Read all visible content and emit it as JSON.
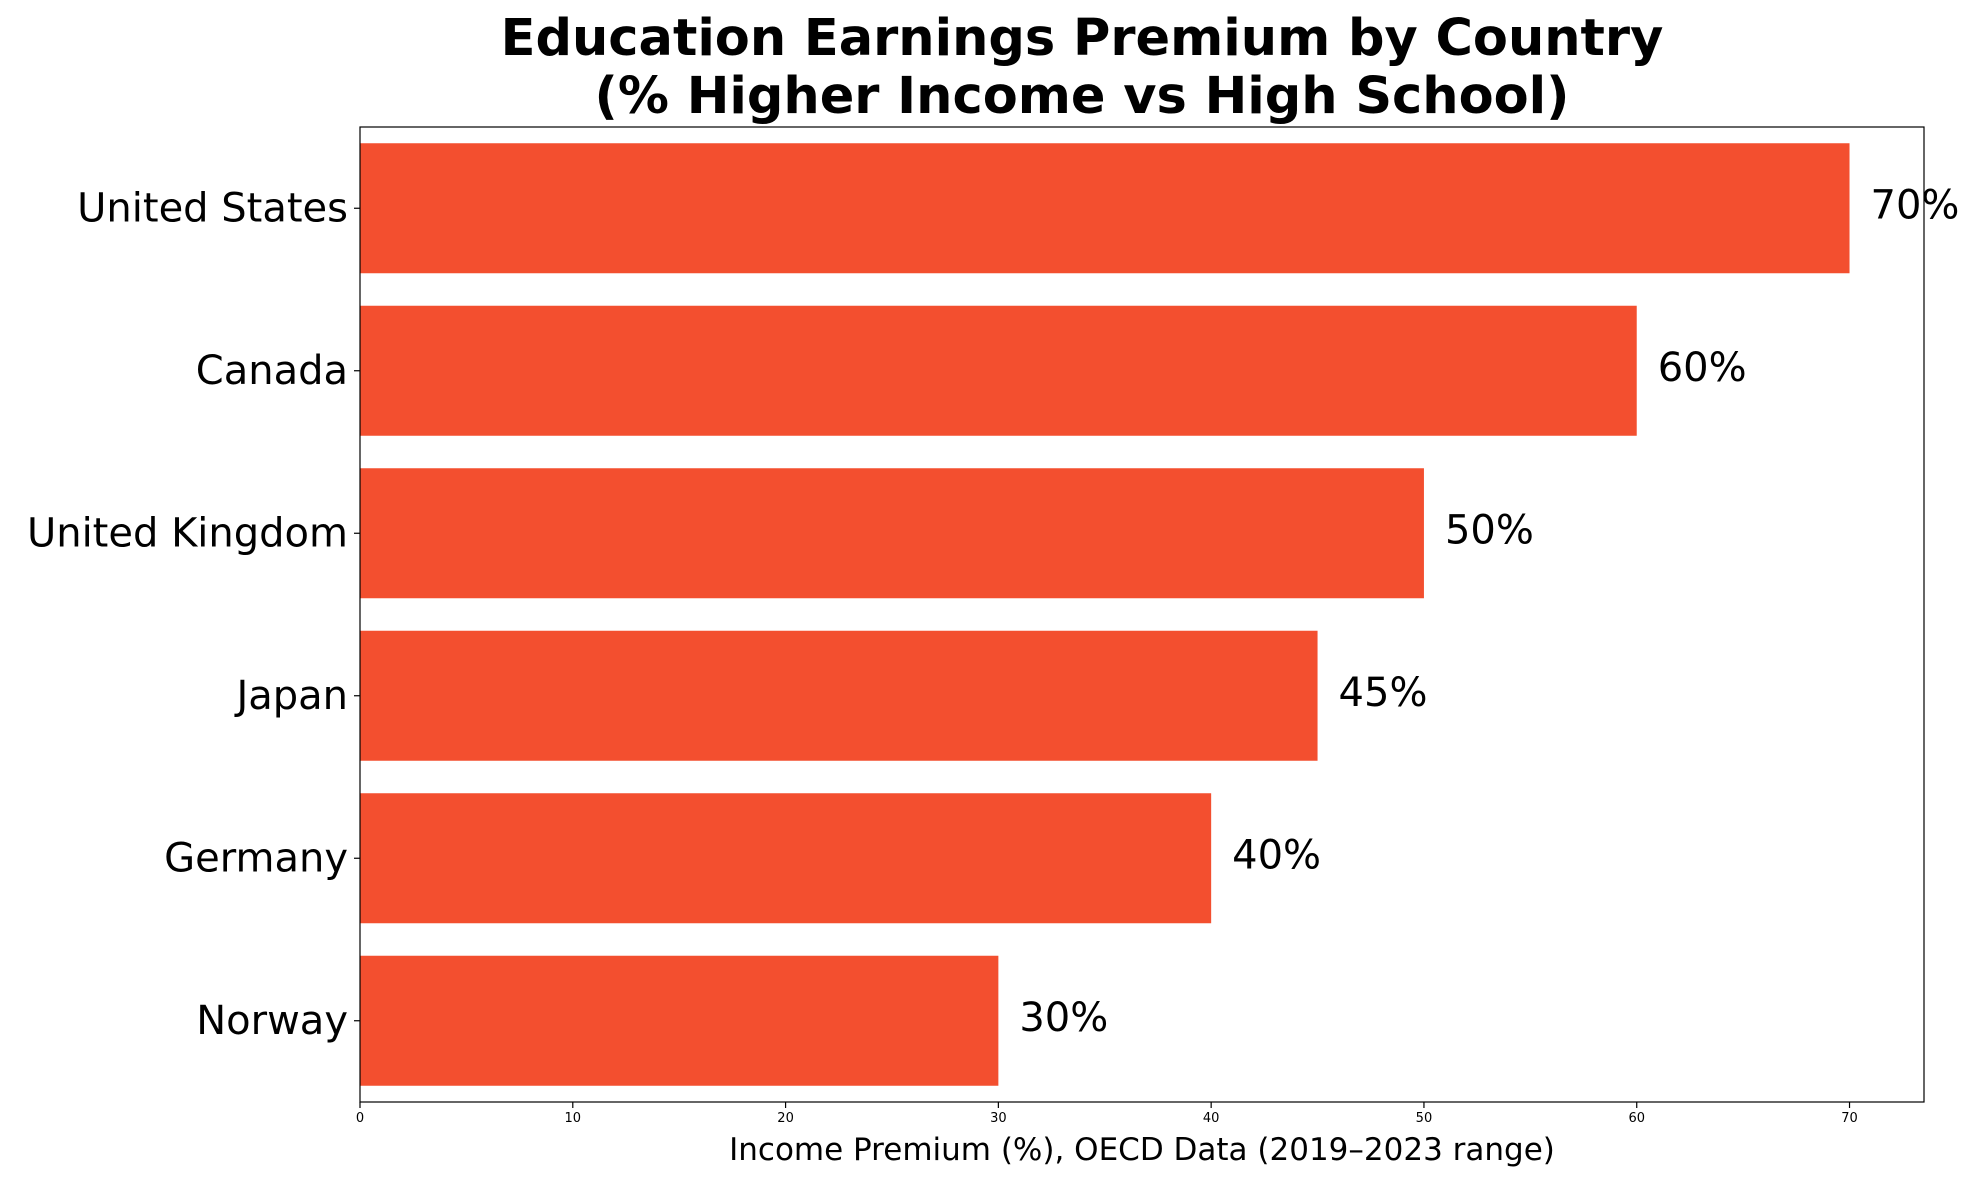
{
  "chart_data": {
    "type": "bar",
    "orientation": "horizontal",
    "title_line1": "Education Earnings Premium by Country",
    "title_line2": "(% Higher Income vs High School)",
    "xlabel": "Income Premium (%), OECD Data (2019–2023 range)",
    "ylabel": "",
    "categories": [
      "United States",
      "Canada",
      "United Kingdom",
      "Japan",
      "Germany",
      "Norway"
    ],
    "values": [
      70,
      60,
      50,
      45,
      40,
      30
    ],
    "value_labels": [
      "70%",
      "60%",
      "50%",
      "45%",
      "40%",
      "30%"
    ],
    "xlim": [
      0,
      73.5
    ],
    "xticks": [
      0,
      10,
      20,
      30,
      40,
      50,
      60,
      70
    ],
    "xtick_labels": [
      "0",
      "10",
      "20",
      "30",
      "40",
      "50",
      "60",
      "70"
    ],
    "grid": false,
    "bar_color": "#f34f2f"
  }
}
